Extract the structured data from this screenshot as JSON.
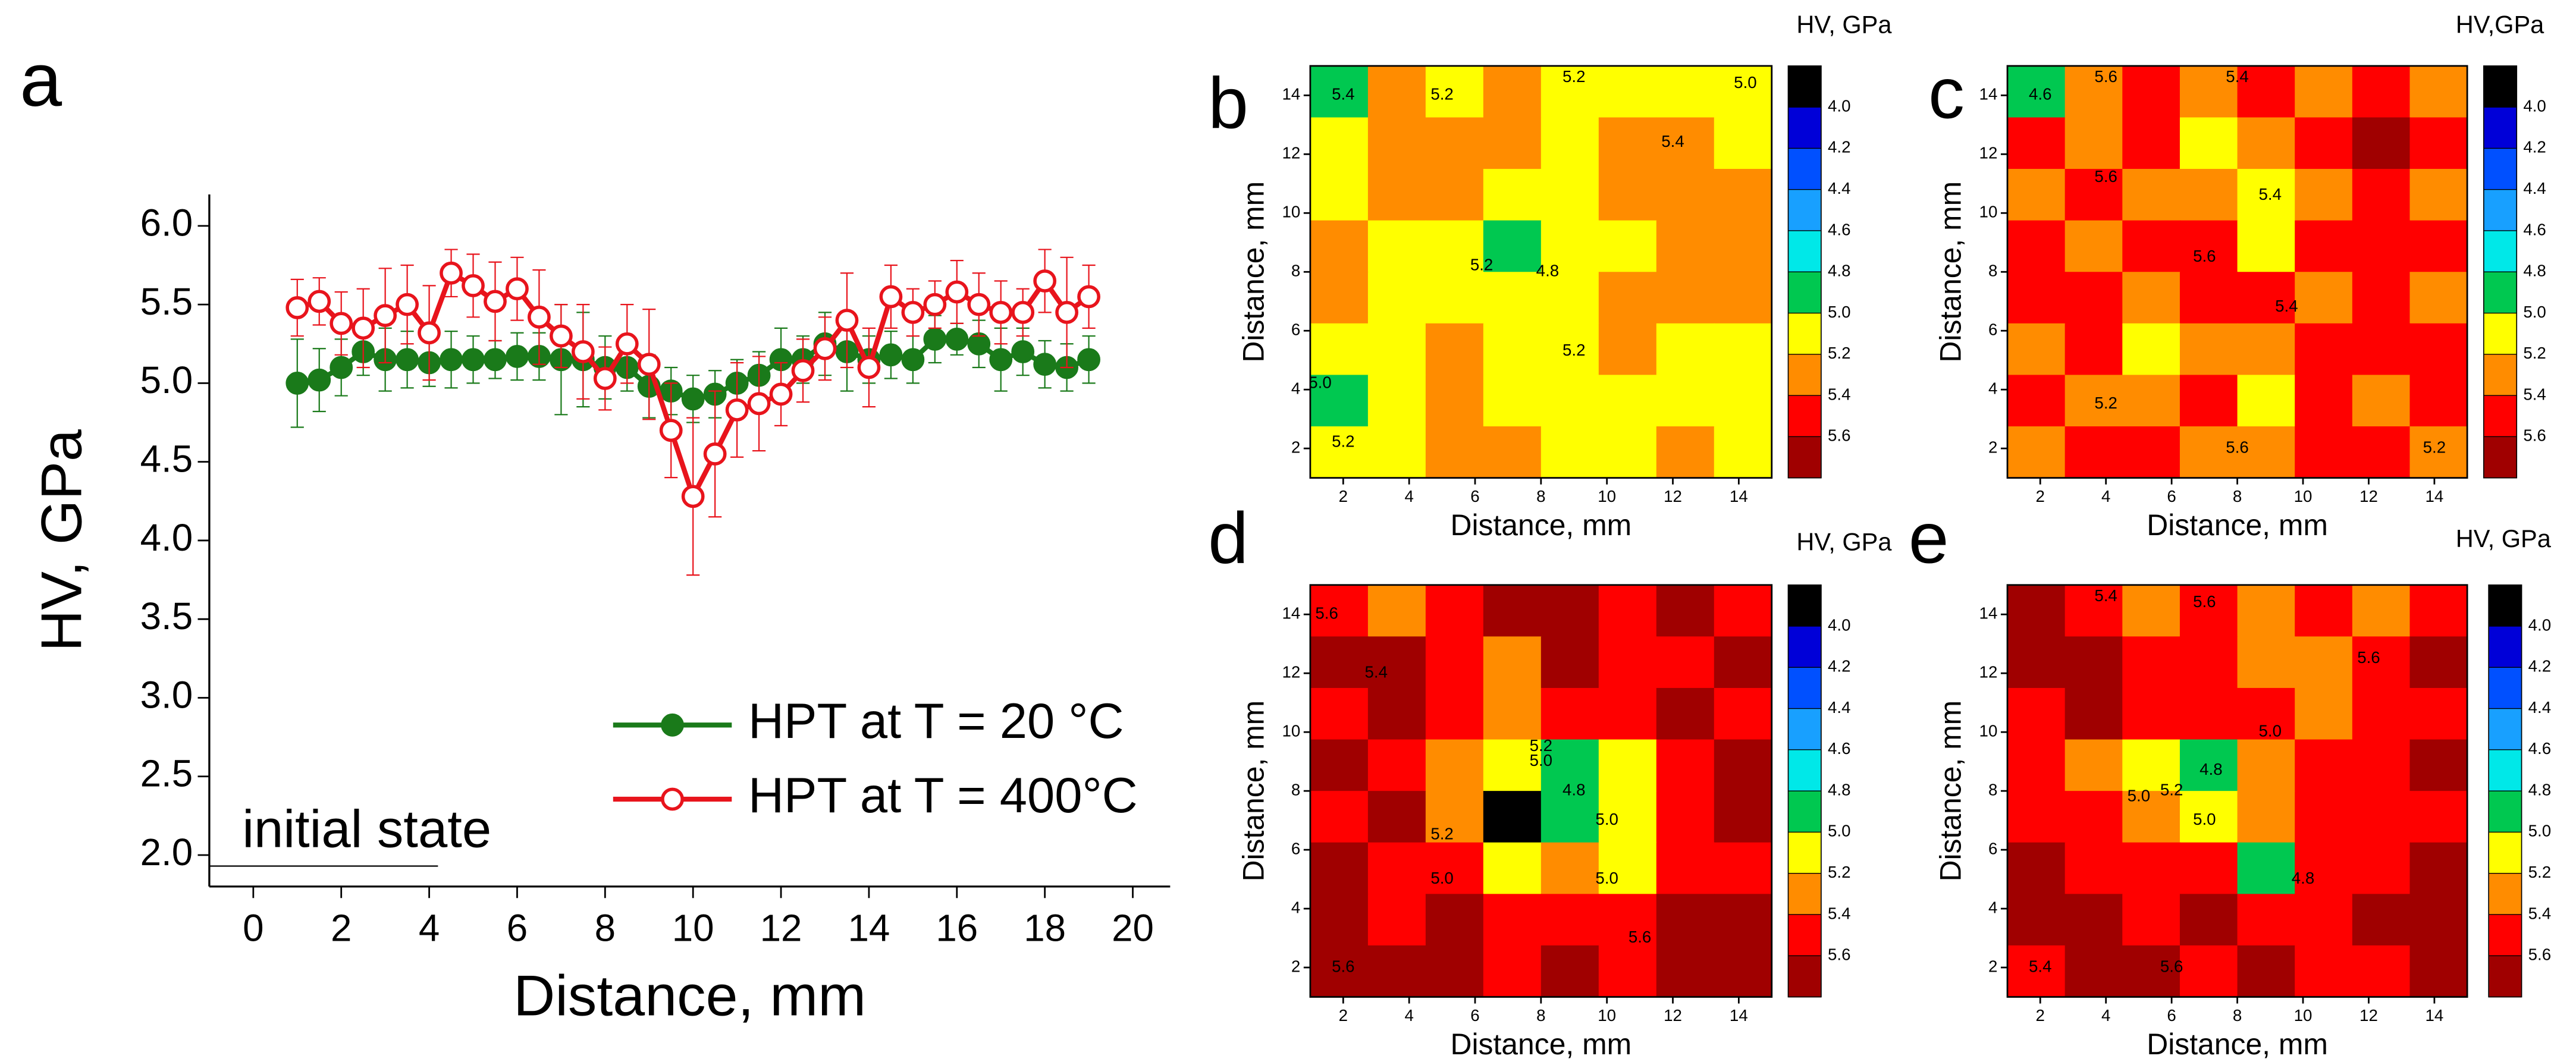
{
  "colorscale": {
    "levels": [
      {
        "value": 4.0,
        "label": "4.0"
      },
      {
        "value": 4.2,
        "label": "4.2"
      },
      {
        "value": 4.4,
        "label": "4.4"
      },
      {
        "value": 4.6,
        "label": "4.6"
      },
      {
        "value": 4.8,
        "label": "4.8"
      },
      {
        "value": 5.0,
        "label": "5.0"
      },
      {
        "value": 5.2,
        "label": "5.2"
      },
      {
        "value": 5.4,
        "label": "5.4"
      },
      {
        "value": 5.6,
        "label": "5.6"
      }
    ],
    "colors": [
      "#000000",
      "#0000d8",
      "#0050ff",
      "#18a0ff",
      "#00e8e8",
      "#00c850",
      "#ffff00",
      "#ff8c00",
      "#ff0000",
      "#a00000"
    ]
  },
  "chart_data": [
    {
      "type": "line",
      "panel": "a",
      "xlabel": "Distance, mm",
      "ylabel": "HV, GPa",
      "x": [
        1,
        1.5,
        2,
        2.5,
        3,
        3.5,
        4,
        4.5,
        5,
        5.5,
        6,
        6.5,
        7,
        7.5,
        8,
        8.5,
        9,
        9.5,
        10,
        10.5,
        11,
        11.5,
        12,
        12.5,
        13,
        13.5,
        14,
        14.5,
        15,
        15.5,
        16,
        16.5,
        17,
        17.5,
        18,
        18.5,
        19
      ],
      "series": [
        {
          "name": "HPT at T = 20 °C",
          "color": "#1a7a1a",
          "marker": "filled",
          "values": [
            5.0,
            5.02,
            5.1,
            5.2,
            5.15,
            5.15,
            5.13,
            5.15,
            5.15,
            5.15,
            5.17,
            5.17,
            5.15,
            5.15,
            5.1,
            5.1,
            4.98,
            4.95,
            4.9,
            4.93,
            5.0,
            5.05,
            5.15,
            5.15,
            5.25,
            5.2,
            5.15,
            5.18,
            5.15,
            5.28,
            5.28,
            5.25,
            5.15,
            5.2,
            5.12,
            5.1,
            5.15
          ],
          "errors": [
            0.28,
            0.2,
            0.18,
            0.15,
            0.2,
            0.18,
            0.15,
            0.18,
            0.15,
            0.12,
            0.15,
            0.15,
            0.35,
            0.3,
            0.2,
            0.15,
            0.2,
            0.15,
            0.15,
            0.15,
            0.15,
            0.15,
            0.2,
            0.15,
            0.2,
            0.25,
            0.15,
            0.15,
            0.15,
            0.15,
            0.1,
            0.15,
            0.2,
            0.15,
            0.15,
            0.15,
            0.15
          ]
        },
        {
          "name": "HPT at T = 400°C",
          "color": "#e8141c",
          "marker": "open",
          "values": [
            5.48,
            5.52,
            5.38,
            5.35,
            5.43,
            5.5,
            5.32,
            5.7,
            5.62,
            5.52,
            5.6,
            5.42,
            5.3,
            5.2,
            5.03,
            5.25,
            5.12,
            4.7,
            4.28,
            4.55,
            4.83,
            4.87,
            4.93,
            5.08,
            5.22,
            5.4,
            5.1,
            5.55,
            5.45,
            5.5,
            5.58,
            5.5,
            5.45,
            5.45,
            5.65,
            5.45,
            5.55
          ],
          "errors": [
            0.18,
            0.15,
            0.2,
            0.25,
            0.3,
            0.25,
            0.3,
            0.15,
            0.2,
            0.25,
            0.2,
            0.3,
            0.2,
            0.3,
            0.2,
            0.25,
            0.35,
            0.3,
            0.5,
            0.4,
            0.3,
            0.3,
            0.2,
            0.2,
            0.2,
            0.3,
            0.25,
            0.2,
            0.15,
            0.15,
            0.2,
            0.2,
            0.2,
            0.15,
            0.2,
            0.35,
            0.2
          ]
        }
      ],
      "xlim": [
        -1,
        20.85
      ],
      "xticks": [
        0,
        2,
        4,
        6,
        8,
        10,
        12,
        14,
        16,
        18,
        20
      ],
      "ylim": [
        1.8,
        6.2
      ],
      "yticks": [
        {
          "value": 2.0,
          "label": "2.0"
        },
        {
          "value": 2.5,
          "label": "2.5"
        },
        {
          "value": 3.0,
          "label": "3.0"
        },
        {
          "value": 3.5,
          "label": "3.5"
        },
        {
          "value": 4.0,
          "label": "4.0"
        },
        {
          "value": 4.5,
          "label": "4.5"
        },
        {
          "value": 5.0,
          "label": "5.0"
        },
        {
          "value": 5.5,
          "label": "5.5"
        },
        {
          "value": 6.0,
          "label": "6.0"
        }
      ],
      "reference": {
        "label": "initial state",
        "value": 1.93,
        "x_end": 4.2
      },
      "legend": "lower right"
    },
    {
      "type": "contour",
      "panel": "b",
      "colorbar_title": "HV, GPa",
      "xlabel": "Distance, mm",
      "ylabel": "Distance, mm",
      "xlim": [
        1,
        15
      ],
      "ylim": [
        1,
        15
      ],
      "xticks": [
        2,
        4,
        6,
        8,
        10,
        12,
        14
      ],
      "yticks": [
        2,
        4,
        6,
        8,
        10,
        12,
        14
      ],
      "grid": [
        [
          4.9,
          5.3,
          5.1,
          5.3,
          5.1,
          5.1,
          5.1,
          5.1
        ],
        [
          5.1,
          5.3,
          5.3,
          5.3,
          5.1,
          5.3,
          5.3,
          5.1
        ],
        [
          5.1,
          5.3,
          5.3,
          5.1,
          5.1,
          5.3,
          5.3,
          5.3
        ],
        [
          5.3,
          5.1,
          5.1,
          4.9,
          5.1,
          5.1,
          5.3,
          5.3
        ],
        [
          5.3,
          5.1,
          5.1,
          5.1,
          5.1,
          5.3,
          5.3,
          5.3
        ],
        [
          5.1,
          5.1,
          5.3,
          5.1,
          5.1,
          5.3,
          5.1,
          5.1
        ],
        [
          4.9,
          5.1,
          5.3,
          5.1,
          5.1,
          5.1,
          5.1,
          5.1
        ],
        [
          5.1,
          5.1,
          5.3,
          5.3,
          5.1,
          5.1,
          5.3,
          5.1
        ]
      ],
      "labels": [
        {
          "x": 2,
          "y": 14,
          "label": "5.4"
        },
        {
          "x": 5,
          "y": 14,
          "label": "5.2"
        },
        {
          "x": 9,
          "y": 14.6,
          "label": "5.2"
        },
        {
          "x": 14.2,
          "y": 14.4,
          "label": "5.0"
        },
        {
          "x": 12,
          "y": 12.4,
          "label": "5.4"
        },
        {
          "x": 8.2,
          "y": 8,
          "label": "4.8"
        },
        {
          "x": 6.2,
          "y": 8.2,
          "label": "5.2"
        },
        {
          "x": 9,
          "y": 5.3,
          "label": "5.2"
        },
        {
          "x": 2,
          "y": 2.2,
          "label": "5.2"
        },
        {
          "x": 1.3,
          "y": 4.2,
          "label": "5.0"
        }
      ]
    },
    {
      "type": "contour",
      "panel": "c",
      "colorbar_title": "HV,GPa",
      "xlabel": "Distance, mm",
      "ylabel": "Distance, mm",
      "xlim": [
        1,
        15
      ],
      "ylim": [
        1,
        15
      ],
      "xticks": [
        2,
        4,
        6,
        8,
        10,
        12,
        14
      ],
      "yticks": [
        2,
        4,
        6,
        8,
        10,
        12,
        14
      ],
      "grid": [
        [
          4.9,
          5.3,
          5.5,
          5.3,
          5.5,
          5.3,
          5.5,
          5.3
        ],
        [
          5.5,
          5.3,
          5.5,
          5.1,
          5.3,
          5.5,
          5.7,
          5.5
        ],
        [
          5.3,
          5.5,
          5.3,
          5.3,
          5.1,
          5.3,
          5.5,
          5.3
        ],
        [
          5.5,
          5.3,
          5.5,
          5.5,
          5.1,
          5.5,
          5.5,
          5.5
        ],
        [
          5.5,
          5.5,
          5.3,
          5.5,
          5.5,
          5.3,
          5.5,
          5.3
        ],
        [
          5.3,
          5.5,
          5.1,
          5.3,
          5.3,
          5.5,
          5.5,
          5.5
        ],
        [
          5.5,
          5.3,
          5.3,
          5.5,
          5.1,
          5.5,
          5.3,
          5.5
        ],
        [
          5.3,
          5.5,
          5.5,
          5.3,
          5.3,
          5.5,
          5.5,
          5.3
        ]
      ],
      "labels": [
        {
          "x": 2,
          "y": 14,
          "label": "4.6"
        },
        {
          "x": 4,
          "y": 14.6,
          "label": "5.6"
        },
        {
          "x": 8,
          "y": 14.6,
          "label": "5.4"
        },
        {
          "x": 4,
          "y": 11.2,
          "label": "5.6"
        },
        {
          "x": 9,
          "y": 10.6,
          "label": "5.4"
        },
        {
          "x": 7,
          "y": 8.5,
          "label": "5.6"
        },
        {
          "x": 9.5,
          "y": 6.8,
          "label": "5.4"
        },
        {
          "x": 4,
          "y": 3.5,
          "label": "5.2"
        },
        {
          "x": 8,
          "y": 2,
          "label": "5.6"
        },
        {
          "x": 14,
          "y": 2,
          "label": "5.2"
        }
      ]
    },
    {
      "type": "contour",
      "panel": "d",
      "colorbar_title": "HV, GPa",
      "xlabel": "Distance, mm",
      "ylabel": "Distance, mm",
      "xlim": [
        1,
        15
      ],
      "ylim": [
        1,
        15
      ],
      "xticks": [
        2,
        4,
        6,
        8,
        10,
        12,
        14
      ],
      "yticks": [
        2,
        4,
        6,
        8,
        10,
        12,
        14
      ],
      "grid": [
        [
          5.5,
          5.3,
          5.5,
          5.7,
          5.7,
          5.5,
          5.7,
          5.5
        ],
        [
          5.7,
          5.7,
          5.5,
          5.3,
          5.7,
          5.5,
          5.5,
          5.7
        ],
        [
          5.5,
          5.7,
          5.5,
          5.3,
          5.5,
          5.5,
          5.7,
          5.5
        ],
        [
          5.7,
          5.5,
          5.3,
          5.1,
          4.9,
          5.1,
          5.5,
          5.7
        ],
        [
          5.5,
          5.7,
          5.3,
          3.9,
          4.9,
          5.1,
          5.5,
          5.7
        ],
        [
          5.7,
          5.5,
          5.5,
          5.1,
          5.3,
          5.1,
          5.5,
          5.5
        ],
        [
          5.7,
          5.5,
          5.7,
          5.5,
          5.5,
          5.5,
          5.7,
          5.7
        ],
        [
          5.7,
          5.7,
          5.7,
          5.5,
          5.7,
          5.5,
          5.7,
          5.7
        ]
      ],
      "labels": [
        {
          "x": 1.5,
          "y": 14,
          "label": "5.6"
        },
        {
          "x": 3,
          "y": 12,
          "label": "5.4"
        },
        {
          "x": 8,
          "y": 9.5,
          "label": "5.2"
        },
        {
          "x": 8,
          "y": 9,
          "label": "5.0"
        },
        {
          "x": 9,
          "y": 8,
          "label": "4.8"
        },
        {
          "x": 10,
          "y": 7,
          "label": "5.0"
        },
        {
          "x": 5,
          "y": 6.5,
          "label": "5.2"
        },
        {
          "x": 5,
          "y": 5,
          "label": "5.0"
        },
        {
          "x": 10,
          "y": 5,
          "label": "5.0"
        },
        {
          "x": 11,
          "y": 3,
          "label": "5.6"
        },
        {
          "x": 2,
          "y": 2,
          "label": "5.6"
        }
      ]
    },
    {
      "type": "contour",
      "panel": "e",
      "colorbar_title": "HV, GPa",
      "xlabel": "Distance, mm",
      "ylabel": "Distance, mm",
      "xlim": [
        1,
        15
      ],
      "ylim": [
        1,
        15
      ],
      "xticks": [
        2,
        4,
        6,
        8,
        10,
        12,
        14
      ],
      "yticks": [
        2,
        4,
        6,
        8,
        10,
        12,
        14
      ],
      "grid": [
        [
          5.7,
          5.5,
          5.3,
          5.5,
          5.3,
          5.5,
          5.3,
          5.5
        ],
        [
          5.7,
          5.7,
          5.5,
          5.5,
          5.3,
          5.3,
          5.5,
          5.7
        ],
        [
          5.5,
          5.7,
          5.5,
          5.5,
          5.5,
          5.3,
          5.5,
          5.5
        ],
        [
          5.5,
          5.3,
          5.1,
          4.9,
          5.3,
          5.5,
          5.5,
          5.7
        ],
        [
          5.5,
          5.5,
          5.3,
          5.1,
          5.3,
          5.5,
          5.5,
          5.5
        ],
        [
          5.7,
          5.5,
          5.5,
          5.5,
          4.9,
          5.5,
          5.5,
          5.7
        ],
        [
          5.7,
          5.7,
          5.5,
          5.7,
          5.5,
          5.5,
          5.7,
          5.7
        ],
        [
          5.5,
          5.7,
          5.7,
          5.5,
          5.7,
          5.5,
          5.5,
          5.7
        ]
      ],
      "labels": [
        {
          "x": 4,
          "y": 14.6,
          "label": "5.4"
        },
        {
          "x": 7,
          "y": 14.4,
          "label": "5.6"
        },
        {
          "x": 12,
          "y": 12.5,
          "label": "5.6"
        },
        {
          "x": 7.2,
          "y": 8.7,
          "label": "4.8"
        },
        {
          "x": 6,
          "y": 8,
          "label": "5.2"
        },
        {
          "x": 5,
          "y": 7.8,
          "label": "5.0"
        },
        {
          "x": 7,
          "y": 7,
          "label": "5.0"
        },
        {
          "x": 9,
          "y": 10,
          "label": "5.0"
        },
        {
          "x": 10,
          "y": 5,
          "label": "4.8"
        },
        {
          "x": 2,
          "y": 2,
          "label": "5.4"
        },
        {
          "x": 6,
          "y": 2,
          "label": "5.6"
        }
      ]
    }
  ]
}
